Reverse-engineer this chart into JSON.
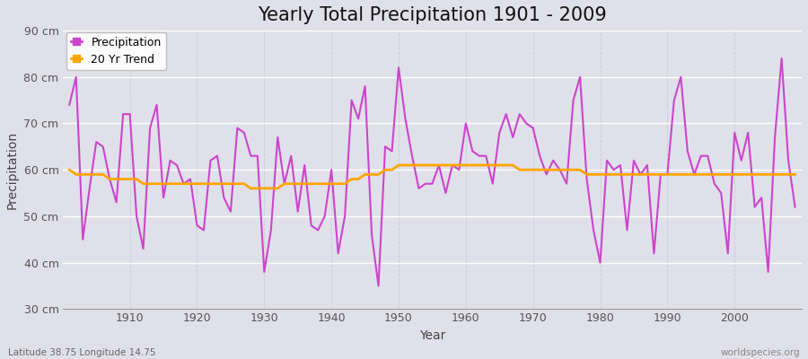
{
  "title": "Yearly Total Precipitation 1901 - 2009",
  "xlabel": "Year",
  "ylabel": "Precipitation",
  "subtitle_left": "Latitude 38.75 Longitude 14.75",
  "subtitle_right": "worldspecies.org",
  "years": [
    1901,
    1902,
    1903,
    1904,
    1905,
    1906,
    1907,
    1908,
    1909,
    1910,
    1911,
    1912,
    1913,
    1914,
    1915,
    1916,
    1917,
    1918,
    1919,
    1920,
    1921,
    1922,
    1923,
    1924,
    1925,
    1926,
    1927,
    1928,
    1929,
    1930,
    1931,
    1932,
    1933,
    1934,
    1935,
    1936,
    1937,
    1938,
    1939,
    1940,
    1941,
    1942,
    1943,
    1944,
    1945,
    1946,
    1947,
    1948,
    1949,
    1950,
    1951,
    1952,
    1953,
    1954,
    1955,
    1956,
    1957,
    1958,
    1959,
    1960,
    1961,
    1962,
    1963,
    1964,
    1965,
    1966,
    1967,
    1968,
    1969,
    1970,
    1971,
    1972,
    1973,
    1974,
    1975,
    1976,
    1977,
    1978,
    1979,
    1980,
    1981,
    1982,
    1983,
    1984,
    1985,
    1986,
    1987,
    1988,
    1989,
    1990,
    1991,
    1992,
    1993,
    1994,
    1995,
    1996,
    1997,
    1998,
    1999,
    2000,
    2001,
    2002,
    2003,
    2004,
    2005,
    2006,
    2007,
    2008,
    2009
  ],
  "precipitation": [
    74,
    80,
    45,
    56,
    66,
    65,
    58,
    53,
    72,
    72,
    50,
    43,
    69,
    74,
    54,
    62,
    61,
    57,
    58,
    48,
    47,
    62,
    63,
    54,
    51,
    69,
    68,
    63,
    63,
    38,
    47,
    67,
    57,
    63,
    51,
    61,
    48,
    47,
    50,
    60,
    42,
    50,
    75,
    71,
    78,
    46,
    35,
    65,
    64,
    82,
    71,
    63,
    56,
    57,
    57,
    61,
    55,
    61,
    60,
    70,
    64,
    63,
    63,
    57,
    68,
    72,
    67,
    72,
    70,
    69,
    63,
    59,
    62,
    60,
    57,
    75,
    80,
    58,
    47,
    40,
    62,
    60,
    61,
    47,
    62,
    59,
    61,
    42,
    59,
    59,
    75,
    80,
    64,
    59,
    63,
    63,
    57,
    55,
    42,
    68,
    62,
    68,
    52,
    54,
    38,
    67,
    84,
    62,
    52
  ],
  "trend": [
    60,
    59,
    59,
    59,
    59,
    59,
    58,
    58,
    58,
    58,
    58,
    57,
    57,
    57,
    57,
    57,
    57,
    57,
    57,
    57,
    57,
    57,
    57,
    57,
    57,
    57,
    57,
    56,
    56,
    56,
    56,
    56,
    57,
    57,
    57,
    57,
    57,
    57,
    57,
    57,
    57,
    57,
    58,
    58,
    59,
    59,
    59,
    60,
    60,
    61,
    61,
    61,
    61,
    61,
    61,
    61,
    61,
    61,
    61,
    61,
    61,
    61,
    61,
    61,
    61,
    61,
    61,
    60,
    60,
    60,
    60,
    60,
    60,
    60,
    60,
    60,
    60,
    59,
    59,
    59,
    59,
    59,
    59,
    59,
    59,
    59,
    59,
    59,
    59,
    59,
    59,
    59,
    59,
    59,
    59,
    59,
    59,
    59,
    59,
    59,
    59,
    59,
    59,
    59,
    59,
    59,
    59,
    59,
    59
  ],
  "precip_color": "#CC44CC",
  "trend_color": "#FFA500",
  "bg_color": "#E0E0EA",
  "grid_color_h": "#FFFFFF",
  "grid_color_v": "#CCCCDD",
  "ylim": [
    30,
    90
  ],
  "yticks": [
    30,
    40,
    50,
    60,
    70,
    80,
    90
  ],
  "ytick_labels": [
    "30 cm",
    "40 cm",
    "50 cm",
    "60 cm",
    "70 cm",
    "80 cm",
    "90 cm"
  ],
  "xticks": [
    1910,
    1920,
    1930,
    1940,
    1950,
    1960,
    1970,
    1980,
    1990,
    2000
  ],
  "xlim": [
    1900,
    2010
  ],
  "title_fontsize": 15,
  "axis_label_fontsize": 10,
  "tick_fontsize": 9,
  "legend_fontsize": 9,
  "precip_linewidth": 1.5,
  "trend_linewidth": 2.0
}
